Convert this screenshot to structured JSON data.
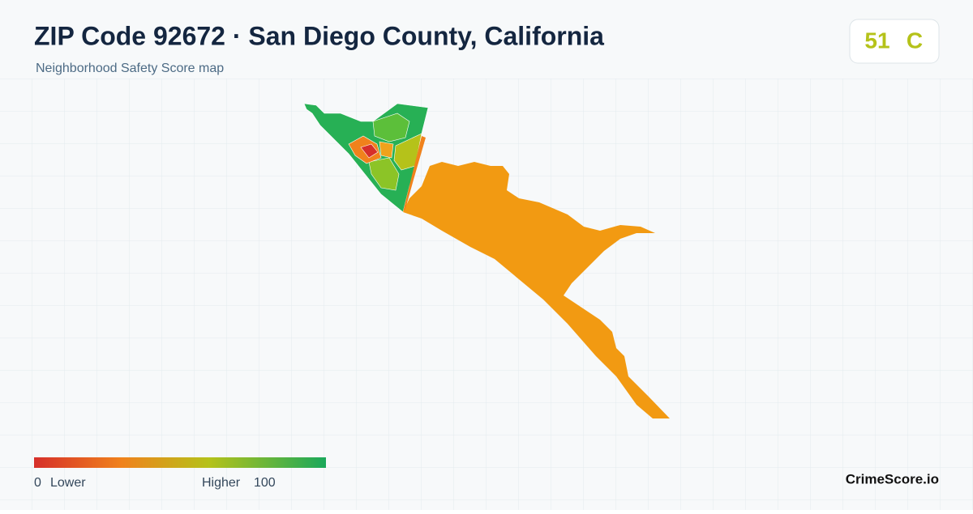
{
  "header": {
    "title": "ZIP Code 92672 · San Diego County, California",
    "subtitle": "Neighborhood Safety Score map"
  },
  "score": {
    "value": "51",
    "grade": "C"
  },
  "legend": {
    "min": "0",
    "min_label": "Lower",
    "max_label": "Higher",
    "max": "100"
  },
  "brand": "CrimeScore.io"
}
